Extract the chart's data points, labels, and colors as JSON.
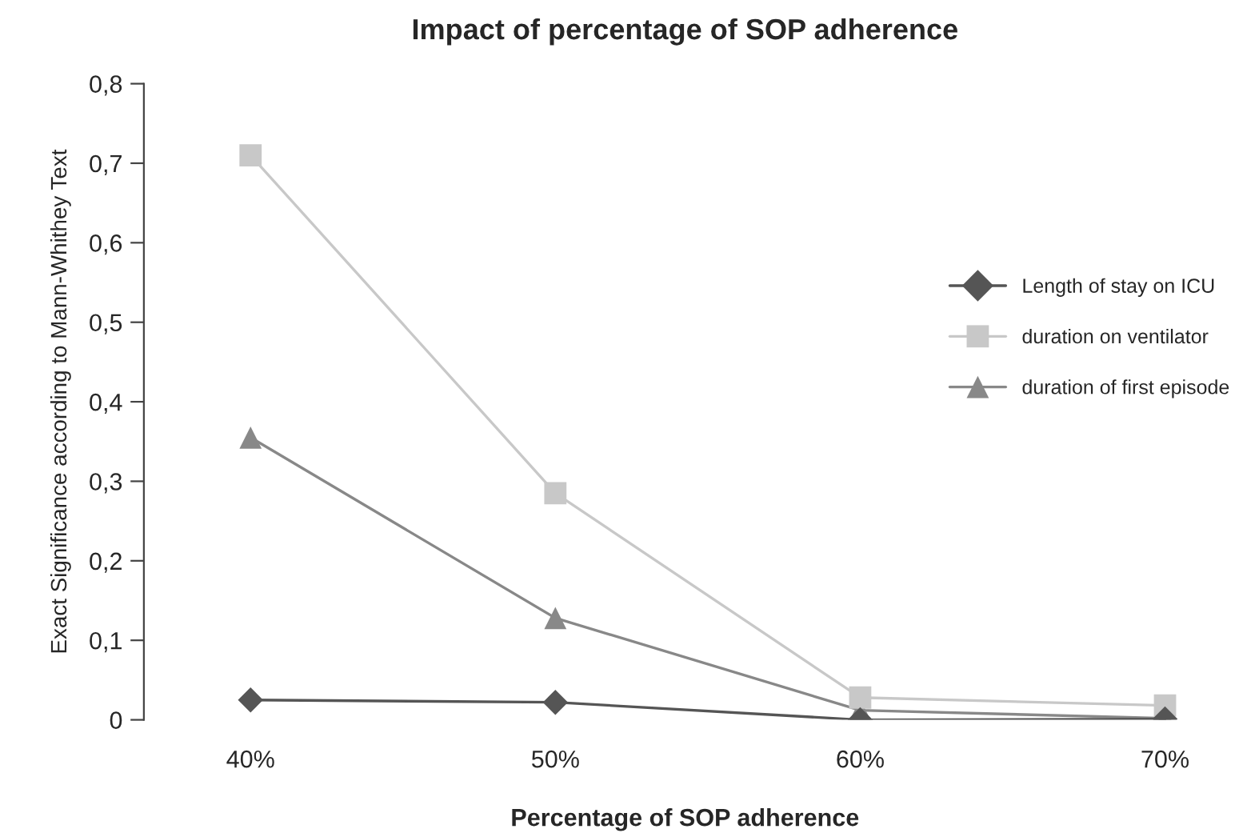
{
  "chart_data": {
    "type": "line",
    "title": "Impact of percentage of SOP adherence",
    "xlabel": "Percentage of SOP adherence",
    "ylabel": "Exact Significance according to Mann-Whithey Text",
    "categories": [
      "40%",
      "50%",
      "60%",
      "70%"
    ],
    "series": [
      {
        "name": "Length of stay on ICU",
        "color": "#555555",
        "marker": "diamond",
        "values": [
          0.025,
          0.022,
          0.0,
          0.001
        ]
      },
      {
        "name": "duration on ventilator",
        "color": "#c8c8c8",
        "marker": "square",
        "values": [
          0.71,
          0.285,
          0.028,
          0.018
        ]
      },
      {
        "name": "duration of first episode",
        "color": "#888888",
        "marker": "triangle",
        "values": [
          0.355,
          0.128,
          0.012,
          0.002
        ]
      }
    ],
    "ylim": [
      0,
      0.8
    ],
    "yticks": [
      {
        "value": 0,
        "label": "0"
      },
      {
        "value": 0.1,
        "label": "0,1"
      },
      {
        "value": 0.2,
        "label": "0,2"
      },
      {
        "value": 0.3,
        "label": "0,3"
      },
      {
        "value": 0.4,
        "label": "0,4"
      },
      {
        "value": 0.5,
        "label": "0,5"
      },
      {
        "value": 0.6,
        "label": "0,6"
      },
      {
        "value": 0.7,
        "label": "0,7"
      },
      {
        "value": 0.8,
        "label": "0,8"
      }
    ],
    "grid": false,
    "legend": "right",
    "line_style": "solid"
  }
}
